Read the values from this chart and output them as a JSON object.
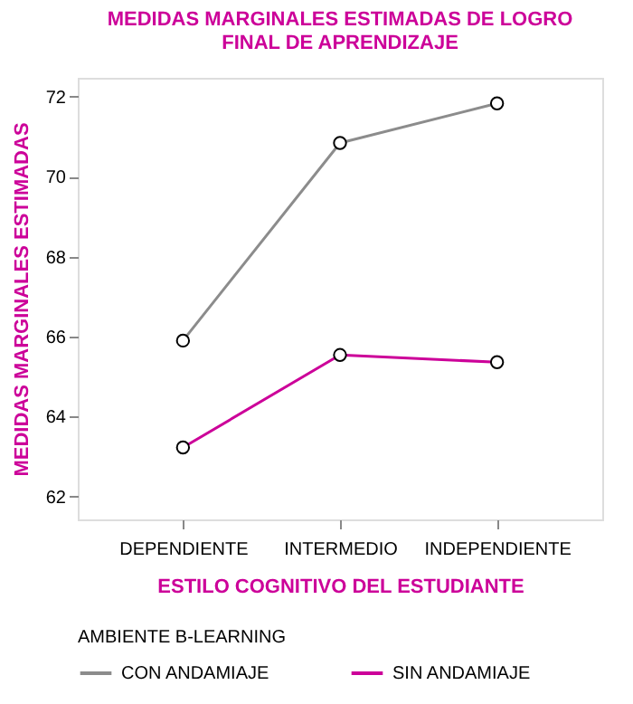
{
  "chart_data": {
    "type": "line",
    "title": [
      "MEDIDAS MARGINALES ESTIMADAS DE LOGRO",
      "FINAL DE APRENDIZAJE"
    ],
    "xlabel": "ESTILO COGNITIVO DEL ESTUDIANTE",
    "ylabel": "MEDIDAS MARGINALES ESTIMADAS",
    "legend_title": "AMBIENTE B-LEARNING",
    "categories": [
      "DEPENDIENTE",
      "INTERMEDIO",
      "INDEPENDIENTE"
    ],
    "series": [
      {
        "name": "CON ANDAMIAJE",
        "color": "#8c8c8c",
        "values": [
          65.9,
          70.84,
          71.83
        ]
      },
      {
        "name": "SIN ANDAMIAJE",
        "color": "#cc0099",
        "values": [
          63.23,
          65.54,
          65.36
        ]
      }
    ],
    "ylim": [
      61.43,
      72.47
    ],
    "yticks": [
      62,
      64,
      66,
      68,
      70,
      72
    ],
    "grid": false,
    "legend": "bottom",
    "marker": "circle",
    "line_style": "solid"
  }
}
